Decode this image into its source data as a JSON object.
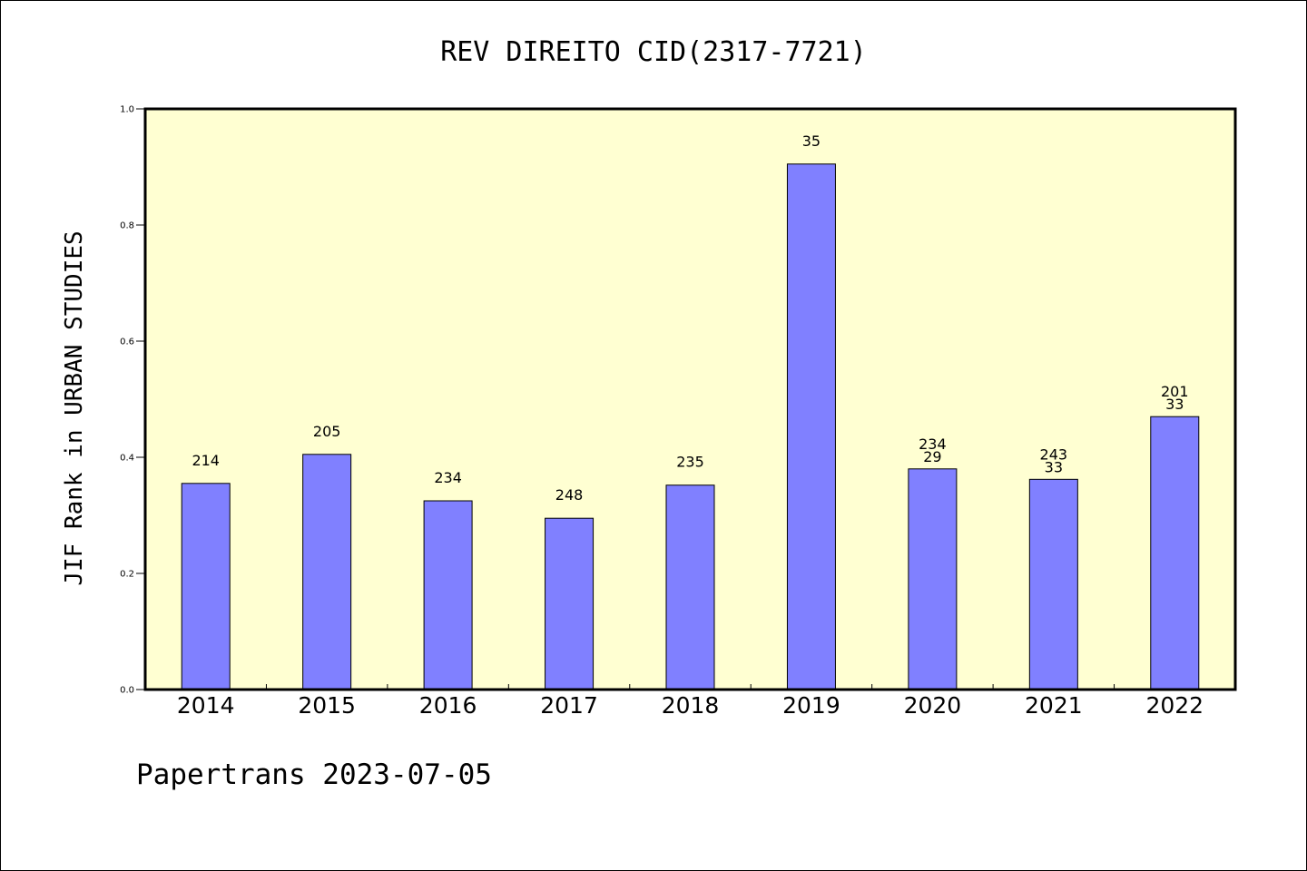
{
  "colors": {
    "plot_background": "#FFFFD2",
    "bar_fill": "#8080FF",
    "bar_stroke": "#000000",
    "axis": "#000000",
    "page_background": "#FFFFFF"
  },
  "footer": {
    "text": "Papertrans 2023-07-05"
  },
  "chart_data": {
    "type": "bar",
    "title": "REV DIREITO CID(2317-7721)",
    "xlabel": "",
    "ylabel": "JIF Rank in URBAN STUDIES",
    "ylim": [
      0,
      1.0
    ],
    "y_ticks": [
      "0.0",
      "0.2",
      "0.4",
      "0.6",
      "0.8",
      "1.0"
    ],
    "grid": false,
    "legend": "none",
    "categories": [
      "2014",
      "2015",
      "2016",
      "2017",
      "2018",
      "2019",
      "2020",
      "2021",
      "2022"
    ],
    "values": [
      0.355,
      0.405,
      0.325,
      0.295,
      0.352,
      0.905,
      0.38,
      0.362,
      0.47
    ],
    "bar_labels": [
      [
        "214"
      ],
      [
        "205"
      ],
      [
        "234"
      ],
      [
        "248"
      ],
      [
        "235"
      ],
      [
        "35"
      ],
      [
        "234",
        "29"
      ],
      [
        "243",
        "33"
      ],
      [
        "201",
        "33"
      ]
    ]
  }
}
